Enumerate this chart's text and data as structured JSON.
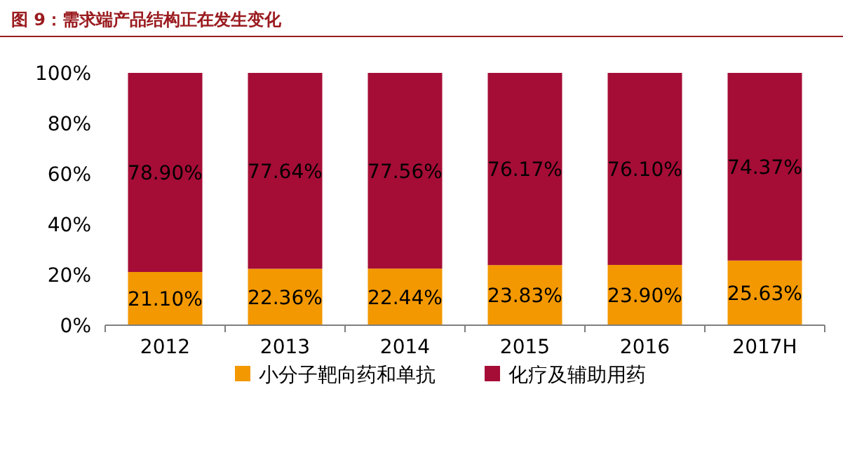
{
  "chart_data": {
    "type": "bar",
    "stacked": true,
    "title": "图 9：需求端产品结构正在发生变化",
    "categories": [
      "2012",
      "2013",
      "2014",
      "2015",
      "2016",
      "2017H"
    ],
    "series": [
      {
        "name": "小分子靶向药和单抗",
        "color": "#f39800",
        "values": [
          21.1,
          22.36,
          22.44,
          23.83,
          23.9,
          25.63
        ],
        "value_labels": [
          "21.10%",
          "22.36%",
          "22.44%",
          "23.83%",
          "23.90%",
          "25.63%"
        ]
      },
      {
        "name": "化疗及辅助用药",
        "color": "#a50d36",
        "values": [
          78.9,
          77.64,
          77.56,
          76.17,
          76.1,
          74.37
        ],
        "value_labels": [
          "78.90%",
          "77.64%",
          "77.56%",
          "76.17%",
          "76.10%",
          "74.37%"
        ]
      }
    ],
    "ylim": [
      0,
      100
    ],
    "yticks": [
      {
        "value": 0,
        "label": "0%"
      },
      {
        "value": 20,
        "label": "20%"
      },
      {
        "value": 40,
        "label": "40%"
      },
      {
        "value": 60,
        "label": "60%"
      },
      {
        "value": 80,
        "label": "80%"
      },
      {
        "value": 100,
        "label": "100%"
      }
    ],
    "grid": false,
    "legend": "bottom"
  }
}
